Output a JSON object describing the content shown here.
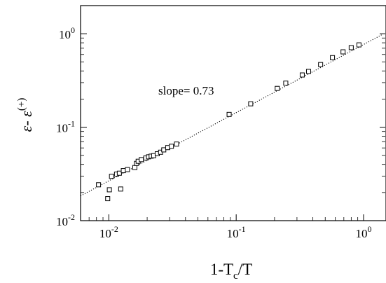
{
  "chart_data": {
    "type": "scatter",
    "title": "",
    "xlabel": {
      "base": "1-T",
      "sub": "c",
      "rest": "/T"
    },
    "ylabel": {
      "base": "ε- ε",
      "sup": "(+)"
    },
    "x_scale": "log",
    "y_scale": "log",
    "xlim": [
      0.006,
      1.5
    ],
    "ylim": [
      0.01,
      2.0
    ],
    "x_ticks": [
      {
        "value": 0.01,
        "base": "10",
        "exp": "-2"
      },
      {
        "value": 0.1,
        "base": "10",
        "exp": "-1"
      },
      {
        "value": 1,
        "base": "10",
        "exp": "0"
      }
    ],
    "y_ticks": [
      {
        "value": 0.01,
        "base": "10",
        "exp": "-2"
      },
      {
        "value": 0.1,
        "base": "10",
        "exp": "-1"
      },
      {
        "value": 1,
        "base": "10",
        "exp": "0"
      }
    ],
    "grid": false,
    "marker": "open-square",
    "annotation": {
      "text": "slope= 0.73",
      "x": 0.028,
      "y": 0.4
    },
    "fit_line": {
      "style": "dotted",
      "slope": 0.73,
      "points": [
        [
          0.006,
          0.0184
        ],
        [
          1.4,
          0.98
        ]
      ]
    },
    "series": [
      {
        "points": [
          [
            0.0083,
            0.0242
          ],
          [
            0.0098,
            0.0172
          ],
          [
            0.0101,
            0.0214
          ],
          [
            0.0105,
            0.0298
          ],
          [
            0.0115,
            0.0315
          ],
          [
            0.0121,
            0.0322
          ],
          [
            0.0124,
            0.0218
          ],
          [
            0.013,
            0.0343
          ],
          [
            0.014,
            0.0352
          ],
          [
            0.016,
            0.037
          ],
          [
            0.0165,
            0.041
          ],
          [
            0.017,
            0.0432
          ],
          [
            0.018,
            0.045
          ],
          [
            0.0195,
            0.0468
          ],
          [
            0.0205,
            0.0482
          ],
          [
            0.0215,
            0.049
          ],
          [
            0.0225,
            0.0496
          ],
          [
            0.024,
            0.052
          ],
          [
            0.0255,
            0.054
          ],
          [
            0.027,
            0.0572
          ],
          [
            0.029,
            0.0605
          ],
          [
            0.031,
            0.0625
          ],
          [
            0.034,
            0.066
          ],
          [
            0.088,
            0.137
          ],
          [
            0.13,
            0.178
          ],
          [
            0.21,
            0.26
          ],
          [
            0.245,
            0.296
          ],
          [
            0.33,
            0.362
          ],
          [
            0.37,
            0.395
          ],
          [
            0.46,
            0.468
          ],
          [
            0.57,
            0.555
          ],
          [
            0.69,
            0.64
          ],
          [
            0.8,
            0.71
          ],
          [
            0.92,
            0.76
          ]
        ]
      }
    ]
  }
}
